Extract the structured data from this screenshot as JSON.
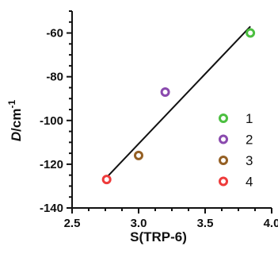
{
  "chart_data": {
    "type": "scatter",
    "xlabel": "S(TRP-6)",
    "ylabel": {
      "symbol": "D",
      "unit": "/cm",
      "exponent": "-1"
    },
    "xlim": [
      2.5,
      4.0
    ],
    "ylim": [
      -140,
      -50
    ],
    "xticks": [
      2.5,
      3.0,
      3.5,
      4.0
    ],
    "xtick_labels": [
      "2.5",
      "3.0",
      "3.5",
      "4.0"
    ],
    "yticks": [
      -140,
      -120,
      -100,
      -80,
      -60
    ],
    "ytick_labels": [
      "-140",
      "-120",
      "-100",
      "-80",
      "-60"
    ],
    "grid": false,
    "legend_position": "right",
    "series": [
      {
        "name": "1",
        "color": "#4cbf40",
        "points": [
          {
            "x": 3.84,
            "y": -60
          }
        ]
      },
      {
        "name": "2",
        "color": "#8a4aae",
        "points": [
          {
            "x": 3.2,
            "y": -87
          }
        ]
      },
      {
        "name": "3",
        "color": "#956024",
        "points": [
          {
            "x": 3.0,
            "y": -116
          }
        ]
      },
      {
        "name": "4",
        "color": "#ee3b3b",
        "points": [
          {
            "x": 2.76,
            "y": -127
          }
        ]
      }
    ],
    "fit_line": {
      "color": "#111111",
      "points": [
        {
          "x": 2.76,
          "y": -126
        },
        {
          "x": 3.84,
          "y": -57
        }
      ]
    }
  }
}
